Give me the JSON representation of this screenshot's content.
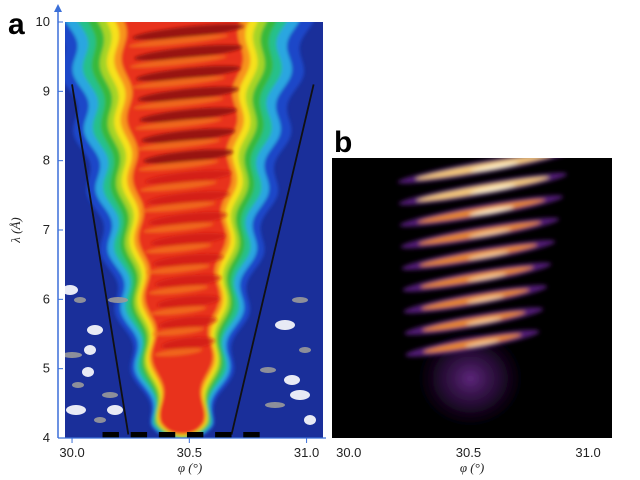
{
  "chart_data": [
    {
      "panel": "a",
      "type": "heatmap",
      "xlabel": "φ (°)",
      "ylabel": "λ (Å)",
      "xlim": [
        29.97,
        31.07
      ],
      "ylim": [
        4,
        10
      ],
      "xticks": [
        30.0,
        30.5,
        31.0
      ],
      "xtick_labels": [
        "30.0",
        "30.5",
        "31.0"
      ],
      "yticks": [
        4,
        5,
        6,
        7,
        8,
        9,
        10
      ],
      "ytick_labels": [
        "4",
        "5",
        "6",
        "7",
        "8",
        "9",
        "10"
      ],
      "colormap": "jet",
      "intensity_region": {
        "description_free_values": true,
        "apex": {
          "phi": 30.47,
          "lambda": 4.2
        },
        "top_edges_phi": [
          30.02,
          30.99
        ],
        "fringe_count": 16
      },
      "guide_lines": [
        {
          "from": {
            "phi": 30.0,
            "lambda": 9.1
          },
          "to": {
            "phi": 30.24,
            "lambda": 4.05
          }
        },
        {
          "from": {
            "phi": 31.03,
            "lambda": 9.1
          },
          "to": {
            "phi": 30.68,
            "lambda": 4.05
          }
        }
      ],
      "bottom_bars_phi": [
        [
          30.13,
          30.2
        ],
        [
          30.25,
          30.32
        ],
        [
          30.37,
          30.44
        ],
        [
          30.49,
          30.56
        ],
        [
          30.61,
          30.68
        ],
        [
          30.73,
          30.8
        ]
      ],
      "colors": {
        "background": "#1a2f9a",
        "line": "#111111",
        "axis": "#3b6fd8"
      }
    },
    {
      "panel": "b",
      "type": "heatmap",
      "xlabel": "φ (°)",
      "xlim": [
        29.93,
        31.1
      ],
      "ylim": [
        4,
        8.7
      ],
      "xticks": [
        30.0,
        30.5,
        31.0
      ],
      "xtick_labels": [
        "30.0",
        "30.5",
        "31.0"
      ],
      "colormap": "inferno",
      "fringe_count": 9,
      "colors": {
        "background": "#000000"
      }
    }
  ],
  "labels": {
    "panel_a": "a",
    "panel_b": "b"
  }
}
